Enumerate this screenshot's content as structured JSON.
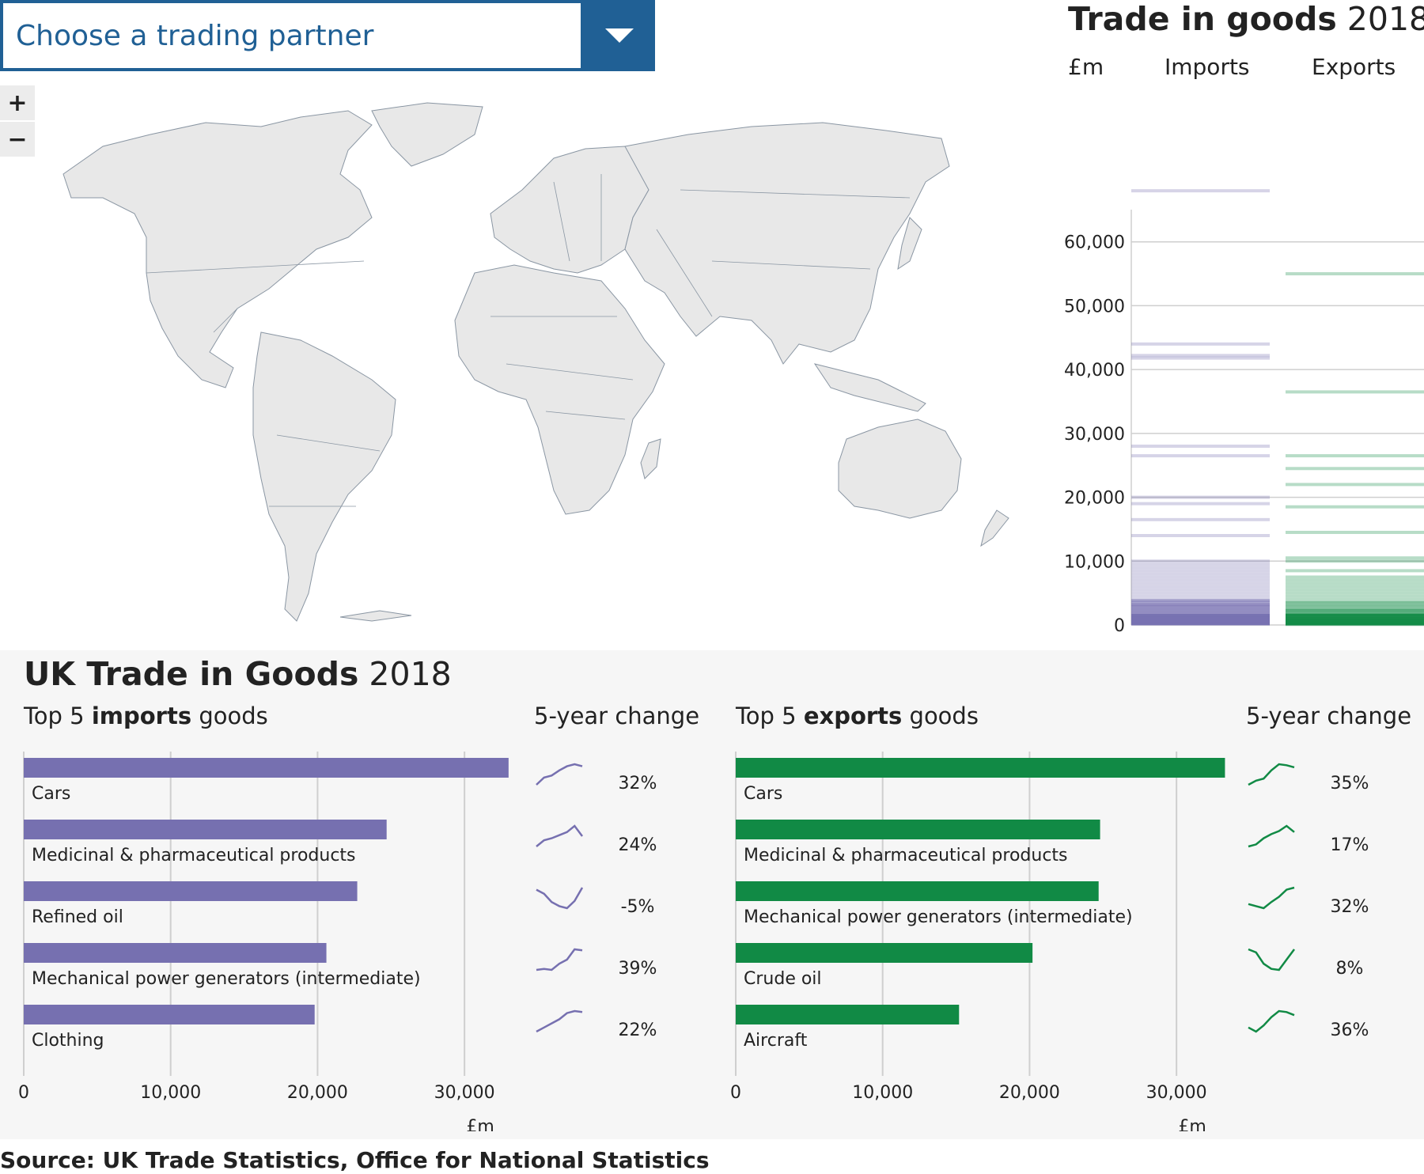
{
  "dropdown": {
    "placeholder": "Choose a trading partner"
  },
  "zoom": {
    "in_label": "+",
    "out_label": "−"
  },
  "colors": {
    "imports": "#7670b0",
    "exports": "#118a45",
    "brand": "#206095",
    "grid": "#cfcfcf"
  },
  "trade_panel": {
    "title_bold": "Trade in goods",
    "title_year": "2018",
    "unit": "£m",
    "imports_label": "Imports",
    "exports_label": "Exports"
  },
  "goods_panel": {
    "title_bold": "UK Trade in Goods",
    "title_year": "2018",
    "imports_heading": {
      "pre": "Top 5 ",
      "bold": "imports",
      "post": " goods"
    },
    "exports_heading": {
      "pre": "Top 5 ",
      "bold": "exports",
      "post": " goods"
    },
    "change_heading": "5-year change"
  },
  "source": "Source: UK Trade Statistics, Office for National Statistics",
  "chart_data": [
    {
      "type": "strip",
      "title": "Trade in goods 2018",
      "ylabel": "£m",
      "ylim": [
        0,
        70000
      ],
      "yticks": [
        0,
        10000,
        20000,
        30000,
        40000,
        50000,
        60000
      ],
      "ytick_labels": [
        "0",
        "10,000",
        "20,000",
        "30,000",
        "40,000",
        "50,000",
        "60,000"
      ],
      "series": [
        {
          "name": "Imports",
          "values": [
            68000,
            44000,
            42200,
            41800,
            28000,
            26500,
            20000,
            19000,
            16500,
            14000,
            10000,
            9500,
            9000,
            8500,
            8000,
            7500,
            7000,
            6500,
            6000,
            5500,
            5000,
            4500,
            4000,
            3800,
            3500,
            3200,
            3000,
            2800,
            2500,
            2300,
            2000,
            1800,
            1500,
            1300,
            1100,
            900,
            700,
            500,
            300,
            150
          ]
        },
        {
          "name": "Exports",
          "values": [
            55000,
            36500,
            26500,
            24500,
            22000,
            18500,
            14500,
            10500,
            10000,
            8500,
            7500,
            7000,
            6500,
            6000,
            5500,
            5000,
            4500,
            4000,
            3500,
            3000,
            2500,
            2200,
            1900,
            1600,
            1300,
            1000,
            800,
            600,
            400,
            200,
            100
          ]
        }
      ]
    },
    {
      "type": "bar",
      "title": "Top 5 imports goods",
      "categories": [
        "Cars",
        "Medicinal & pharmaceutical products",
        "Refined oil",
        "Mechanical power generators (intermediate)",
        "Clothing"
      ],
      "values": [
        33000,
        24700,
        22700,
        20600,
        19800
      ],
      "xlim": [
        0,
        35000
      ],
      "xticks": [
        0,
        10000,
        20000,
        30000
      ],
      "xtick_labels": [
        "0",
        "10,000",
        "20,000",
        "30,000"
      ],
      "xlabel": "£m",
      "change_labels": [
        "32%",
        "24%",
        "-5%",
        "39%",
        "22%"
      ],
      "sparklines": [
        [
          0.0,
          0.35,
          0.45,
          0.7,
          0.9,
          1.0,
          0.9
        ],
        [
          0.0,
          0.3,
          0.4,
          0.55,
          0.7,
          1.0,
          0.5
        ],
        [
          0.9,
          0.7,
          0.3,
          0.1,
          0.0,
          0.35,
          1.0
        ],
        [
          0.0,
          0.05,
          0.0,
          0.3,
          0.5,
          1.0,
          0.95
        ],
        [
          0.0,
          0.2,
          0.4,
          0.6,
          0.9,
          1.0,
          0.95
        ]
      ]
    },
    {
      "type": "bar",
      "title": "Top 5 exports goods",
      "categories": [
        "Cars",
        "Medicinal & pharmaceutical products",
        "Mechanical power generators (intermediate)",
        "Crude oil",
        "Aircraft"
      ],
      "values": [
        33300,
        24800,
        24700,
        20200,
        15200
      ],
      "xlim": [
        0,
        35000
      ],
      "xticks": [
        0,
        10000,
        20000,
        30000
      ],
      "xtick_labels": [
        "0",
        "10,000",
        "20,000",
        "30,000"
      ],
      "xlabel": "£m",
      "change_labels": [
        "35%",
        "17%",
        "32%",
        "8%",
        "36%"
      ],
      "sparklines": [
        [
          0.0,
          0.2,
          0.3,
          0.7,
          1.0,
          0.95,
          0.85
        ],
        [
          0.0,
          0.1,
          0.4,
          0.6,
          0.75,
          1.0,
          0.7
        ],
        [
          0.2,
          0.1,
          0.0,
          0.3,
          0.55,
          0.9,
          1.0
        ],
        [
          1.0,
          0.85,
          0.3,
          0.05,
          0.0,
          0.5,
          1.0
        ],
        [
          0.2,
          0.0,
          0.3,
          0.7,
          1.0,
          0.95,
          0.8
        ]
      ]
    }
  ]
}
